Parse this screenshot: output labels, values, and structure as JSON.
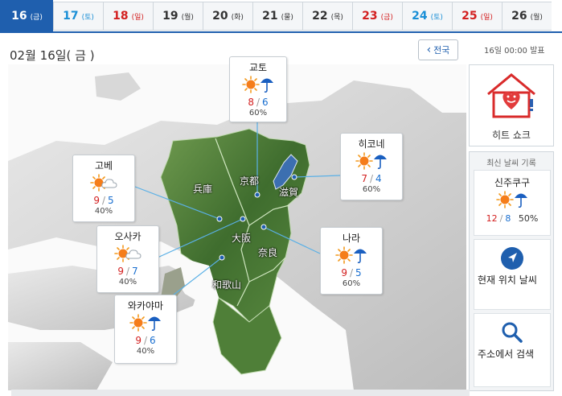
{
  "tabs": [
    {
      "day": "16",
      "dow": "(금)",
      "kind": "active"
    },
    {
      "day": "17",
      "dow": "(토)",
      "kind": "sat"
    },
    {
      "day": "18",
      "dow": "(일)",
      "kind": "sun"
    },
    {
      "day": "19",
      "dow": "(월)",
      "kind": "wd"
    },
    {
      "day": "20",
      "dow": "(화)",
      "kind": "wd"
    },
    {
      "day": "21",
      "dow": "(물)",
      "kind": "wd"
    },
    {
      "day": "22",
      "dow": "(목)",
      "kind": "wd"
    },
    {
      "day": "23",
      "dow": "(금)",
      "kind": "sun"
    },
    {
      "day": "24",
      "dow": "(토)",
      "kind": "sat"
    },
    {
      "day": "25",
      "dow": "(일)",
      "kind": "sun"
    },
    {
      "day": "26",
      "dow": "(월)",
      "kind": "wd"
    }
  ],
  "header": {
    "date_title": "02월 16일( 금 )",
    "back_label": "전국",
    "issued": "16일 00:00 발표"
  },
  "cities": {
    "kyoto": {
      "name": "교토",
      "hi": "8",
      "lo": "6",
      "pop": "60%",
      "icon": "sun-umbrella"
    },
    "kobe": {
      "name": "고베",
      "hi": "9",
      "lo": "5",
      "pop": "40%",
      "icon": "sun-cloud"
    },
    "hikone": {
      "name": "히코네",
      "hi": "7",
      "lo": "4",
      "pop": "60%",
      "icon": "sun-umbrella"
    },
    "osaka": {
      "name": "오사카",
      "hi": "9",
      "lo": "7",
      "pop": "40%",
      "icon": "sun-cloud"
    },
    "nara": {
      "name": "나라",
      "hi": "9",
      "lo": "5",
      "pop": "60%",
      "icon": "sun-umbrella"
    },
    "wakayama": {
      "name": "와카야마",
      "hi": "9",
      "lo": "6",
      "pop": "40%",
      "icon": "sun-umbrella"
    }
  },
  "prefectures": {
    "hyogo": "兵庫",
    "kyoto": "京都",
    "shiga": "滋賀",
    "osaka": "大阪",
    "nara": "奈良",
    "wakayama": "和歌山"
  },
  "heat": {
    "label": "히트 쇼크"
  },
  "recent": {
    "header": "최신 날씨 기록",
    "city": "신주쿠구",
    "hi": "12",
    "lo": "8",
    "pop": "50%",
    "location_label": "현재 위치 날씨",
    "address_label": "주소에서 검색"
  },
  "colors": {
    "accent": "#1f5fae",
    "hi": "#d32020",
    "lo": "#1a6fd0",
    "sat": "#1a8fd6"
  }
}
